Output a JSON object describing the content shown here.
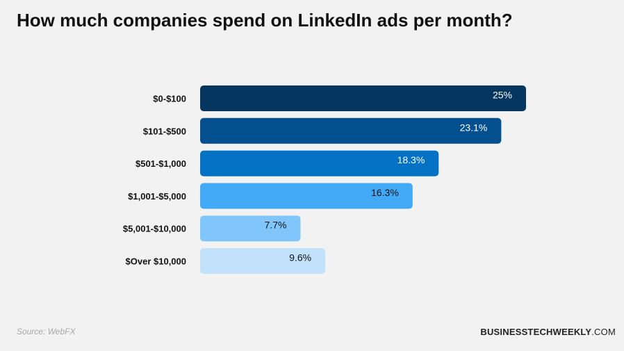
{
  "title": "How much companies spend on LinkedIn ads per month?",
  "source": "Source: WebFX",
  "brand": {
    "bold": "BUSINESSTECHWEEKLY",
    "suffix": ".COM"
  },
  "chart_data": {
    "type": "bar",
    "orientation": "horizontal",
    "title": "How much companies spend on LinkedIn ads per month?",
    "categories": [
      "$0-$100",
      "$101-$500",
      "$501-$1,000",
      "$1,001-$5,000",
      "$5,001-$10,000",
      "$Over $10,000"
    ],
    "values": [
      25,
      23.1,
      18.3,
      16.3,
      7.7,
      9.6
    ],
    "value_labels": [
      "25%",
      "23.1%",
      "18.3%",
      "16.3%",
      "7.7%",
      "9.6%"
    ],
    "unit": "%",
    "colors": [
      "#05365f",
      "#04508e",
      "#0472c4",
      "#41a9f6",
      "#80c6fb",
      "#c2e2fb"
    ],
    "label_colors": [
      "#ffffff",
      "#ffffff",
      "#ffffff",
      "#111111",
      "#111111",
      "#111111"
    ],
    "grid": false,
    "legend": "none"
  }
}
